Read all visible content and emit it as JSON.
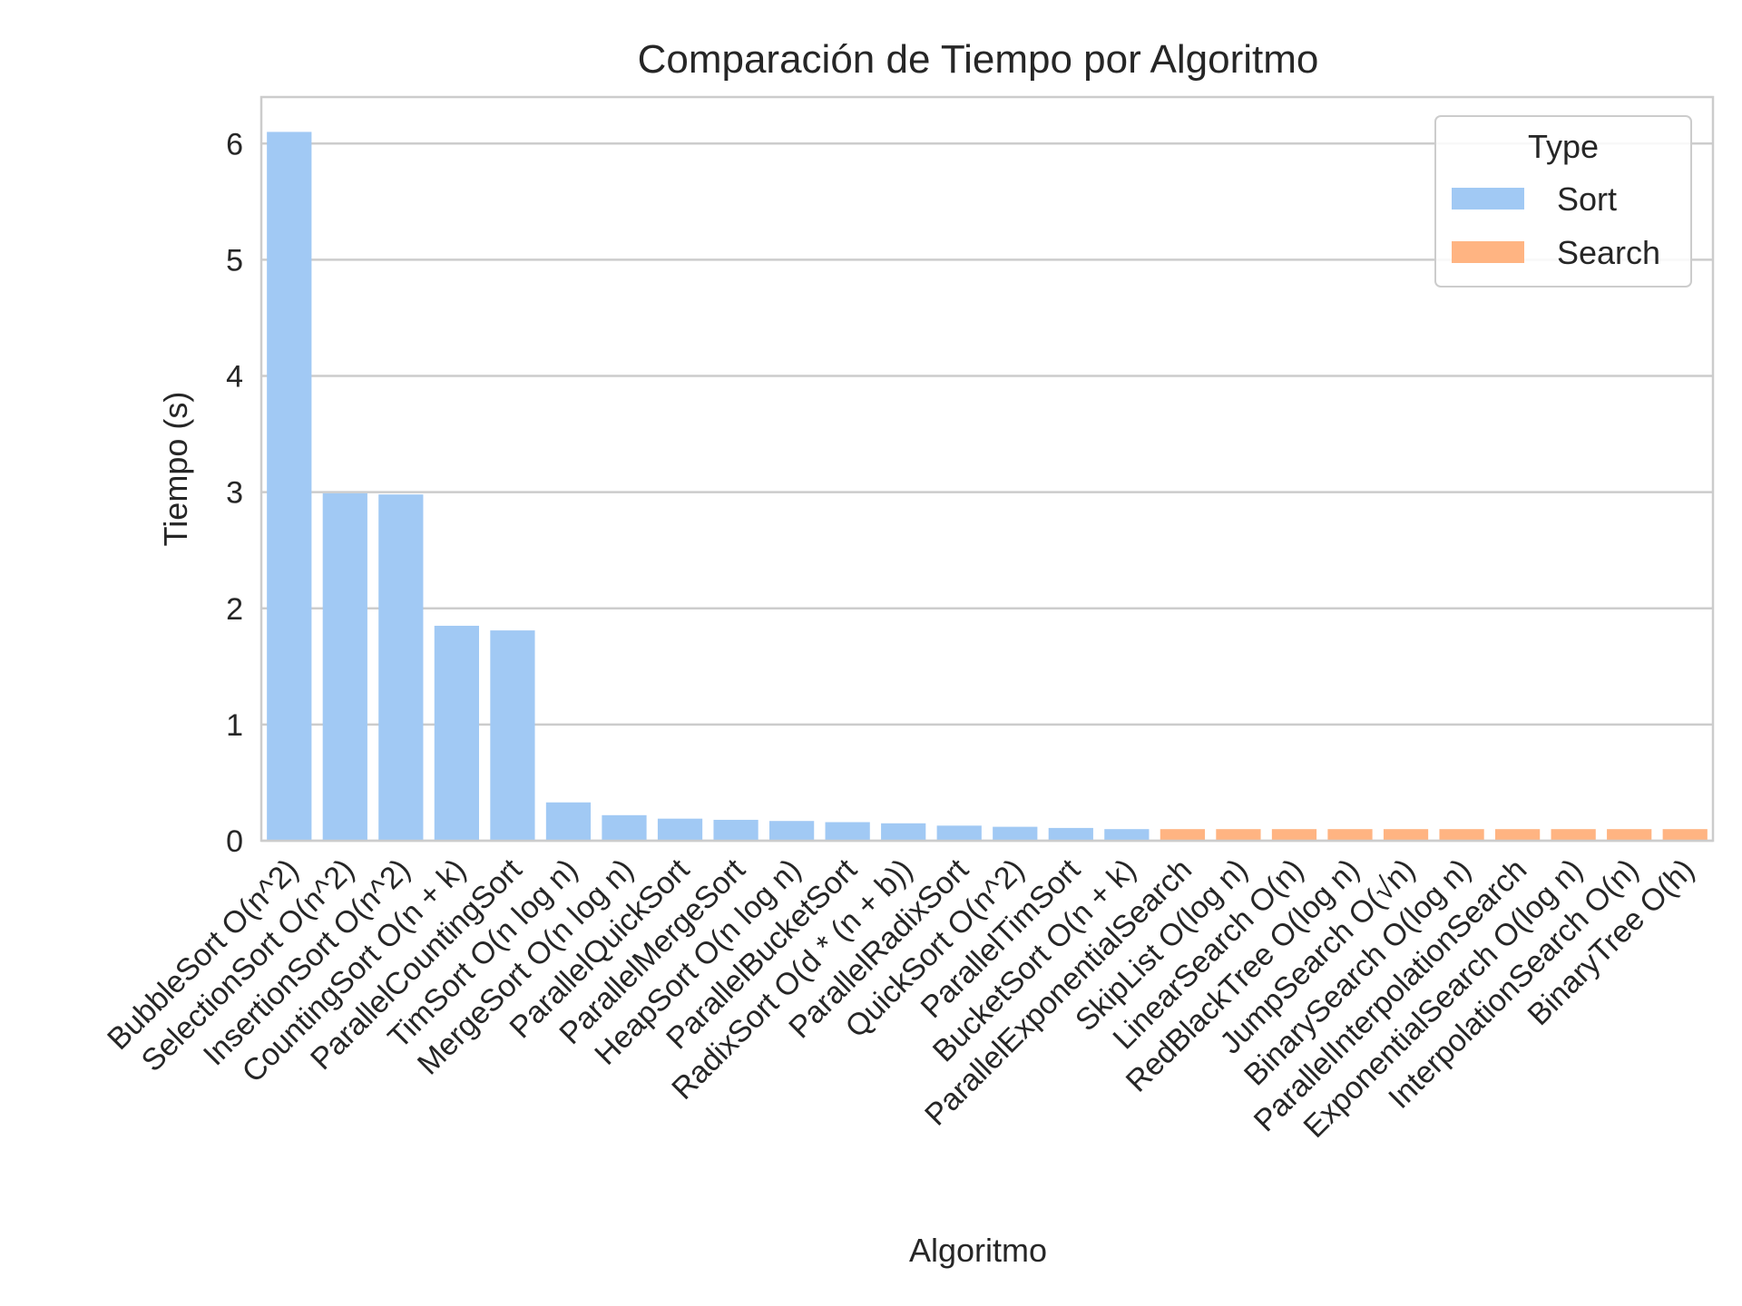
{
  "chart_data": {
    "type": "bar",
    "title": "Comparación de Tiempo por Algoritmo",
    "xlabel": "Algoritmo",
    "ylabel": "Tiempo (s)",
    "ylim": [
      0,
      6.4
    ],
    "yticks": [
      0,
      1,
      2,
      3,
      4,
      5,
      6
    ],
    "grid": true,
    "legend": {
      "title": "Type",
      "location": "top-right"
    },
    "series_colors": {
      "Sort": "#a1c9f4",
      "Search": "#ffb482"
    },
    "categories": [
      "BubbleSort O(n^2)",
      "SelectionSort O(n^2)",
      "InsertionSort O(n^2)",
      "CountingSort O(n + k)",
      "ParallelCountingSort",
      "TimSort O(n log n)",
      "MergeSort O(n log n)",
      "ParallelQuickSort",
      "ParallelMergeSort",
      "HeapSort O(n log n)",
      "ParallelBucketSort",
      "RadixSort O(d * (n + b))",
      "ParallelRadixSort",
      "QuickSort O(n^2)",
      "ParallelTimSort",
      "BucketSort O(n + k)",
      "ParallelExponentialSearch",
      "SkipList O(log n)",
      "LinearSearch O(n)",
      "RedBlackTree O(log n)",
      "JumpSearch O(√n)",
      "BinarySearch O(log n)",
      "ParallelInterpolationSearch",
      "ExponentialSearch O(log n)",
      "InterpolationSearch O(n)",
      "BinaryTree O(h)"
    ],
    "types": [
      "Sort",
      "Sort",
      "Sort",
      "Sort",
      "Sort",
      "Sort",
      "Sort",
      "Sort",
      "Sort",
      "Sort",
      "Sort",
      "Sort",
      "Sort",
      "Sort",
      "Sort",
      "Sort",
      "Search",
      "Search",
      "Search",
      "Search",
      "Search",
      "Search",
      "Search",
      "Search",
      "Search",
      "Search"
    ],
    "values": [
      6.1,
      2.99,
      2.98,
      1.85,
      1.81,
      0.33,
      0.22,
      0.19,
      0.18,
      0.17,
      0.16,
      0.15,
      0.13,
      0.12,
      0.11,
      0.1,
      0.1,
      0.1,
      0.1,
      0.1,
      0.1,
      0.1,
      0.1,
      0.1,
      0.1,
      0.1
    ]
  }
}
